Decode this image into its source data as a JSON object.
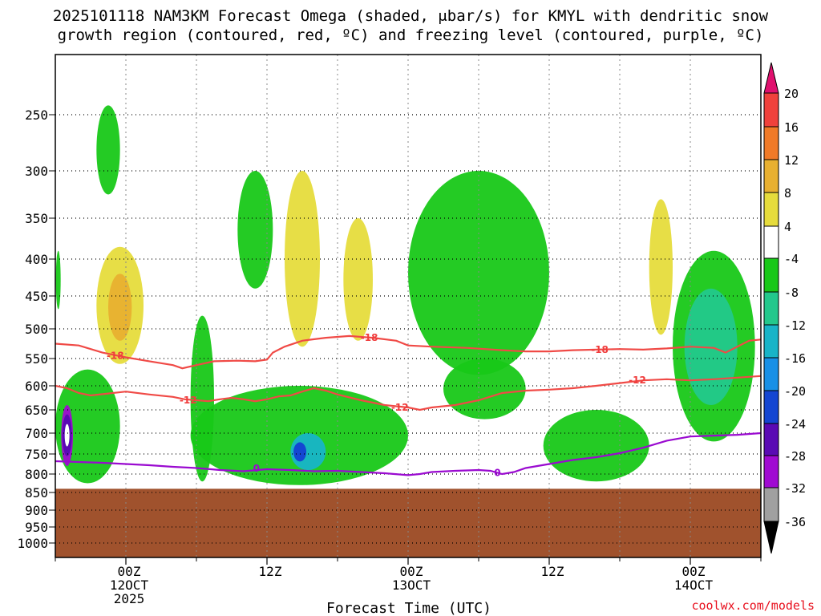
{
  "chart_data": {
    "type": "heatmap",
    "title_line1": "2025101118 NAM3KM Forecast Omega (shaded, μbar/s) for KMYL with dendritic snow",
    "title_line2": "growth region (contoured, red, ºC) and freezing level (contoured, purple, ºC)",
    "xlabel": "Forecast Time (UTC)",
    "credit": "coolwx.com/models",
    "y_ticks": [
      250,
      300,
      350,
      400,
      450,
      500,
      550,
      600,
      650,
      700,
      750,
      800,
      850,
      900,
      950,
      1000
    ],
    "x_ticks": [
      {
        "hours": 6,
        "line1": "00Z",
        "line2": "12OCT",
        "line3": "2025"
      },
      {
        "hours": 18,
        "line1": "12Z",
        "line2": "",
        "line3": ""
      },
      {
        "hours": 30,
        "line1": "00Z",
        "line2": "13OCT",
        "line3": ""
      },
      {
        "hours": 42,
        "line1": "12Z",
        "line2": "",
        "line3": ""
      },
      {
        "hours": 54,
        "line1": "00Z",
        "line2": "14OCT",
        "line3": ""
      }
    ],
    "xlim": [
      0,
      60
    ],
    "ylim_pressure_hPa": [
      1050,
      200
    ],
    "ground_level_hPa": 840,
    "colorbar": {
      "labels": [
        "20",
        "16",
        "12",
        "8",
        "4",
        "-4",
        "-8",
        "-12",
        "-16",
        "-20",
        "-24",
        "-28",
        "-32",
        "-36"
      ],
      "colors": [
        "#e0106e",
        "#f0413c",
        "#f07a28",
        "#e8b030",
        "#e6dc3c",
        "#ffffff",
        "#18c818",
        "#23c88c",
        "#18b4c8",
        "#1890e6",
        "#1446d2",
        "#5a0ab4",
        "#a00ad2",
        "#a0a0a0",
        "#000000"
      ]
    },
    "contours": [
      {
        "name": "-18",
        "color": "#f04a46",
        "points": [
          [
            0,
            525
          ],
          [
            2,
            528
          ],
          [
            4,
            540
          ],
          [
            6,
            548
          ],
          [
            8,
            555
          ],
          [
            10,
            562
          ],
          [
            10.8,
            568
          ],
          [
            12,
            562
          ],
          [
            13.5,
            555
          ],
          [
            15.5,
            554
          ],
          [
            17,
            555
          ],
          [
            18,
            552
          ],
          [
            18.5,
            540
          ],
          [
            19.5,
            530
          ],
          [
            21,
            520
          ],
          [
            23,
            515
          ],
          [
            25,
            512
          ],
          [
            27,
            515
          ],
          [
            29,
            520
          ],
          [
            30,
            528
          ],
          [
            32,
            530
          ],
          [
            35,
            532
          ],
          [
            38,
            536
          ],
          [
            40,
            538
          ],
          [
            42,
            538
          ],
          [
            44,
            536
          ],
          [
            46,
            535
          ],
          [
            48,
            534
          ],
          [
            50,
            535
          ],
          [
            52,
            533
          ],
          [
            54,
            530
          ],
          [
            56,
            532
          ],
          [
            57,
            540
          ],
          [
            58,
            530
          ],
          [
            59,
            520
          ],
          [
            60,
            518
          ]
        ]
      },
      {
        "name": "-12",
        "color": "#f04a46",
        "points": [
          [
            0,
            600
          ],
          [
            1,
            605
          ],
          [
            2,
            615
          ],
          [
            3,
            620
          ],
          [
            6,
            612
          ],
          [
            8,
            618
          ],
          [
            10,
            623
          ],
          [
            11,
            628
          ],
          [
            13,
            632
          ],
          [
            14,
            628
          ],
          [
            15,
            625
          ],
          [
            16,
            628
          ],
          [
            17,
            632
          ],
          [
            18,
            628
          ],
          [
            19,
            622
          ],
          [
            20,
            620
          ],
          [
            21,
            612
          ],
          [
            22,
            605
          ],
          [
            23,
            610
          ],
          [
            24,
            618
          ],
          [
            26,
            630
          ],
          [
            28,
            640
          ],
          [
            30,
            645
          ],
          [
            31,
            650
          ],
          [
            32,
            645
          ],
          [
            34,
            640
          ],
          [
            36,
            630
          ],
          [
            38,
            615
          ],
          [
            40,
            610
          ],
          [
            42,
            608
          ],
          [
            44,
            605
          ],
          [
            46,
            600
          ],
          [
            48,
            595
          ],
          [
            50,
            590
          ],
          [
            52,
            588
          ],
          [
            54,
            590
          ],
          [
            56,
            588
          ],
          [
            58,
            585
          ],
          [
            60,
            582
          ]
        ]
      },
      {
        "name": "0",
        "color": "#9a0ad0",
        "points": [
          [
            0,
            768
          ],
          [
            2,
            770
          ],
          [
            4,
            772
          ],
          [
            6,
            775
          ],
          [
            8,
            778
          ],
          [
            10,
            782
          ],
          [
            12,
            785
          ],
          [
            14,
            790
          ],
          [
            16,
            793
          ],
          [
            18,
            788
          ],
          [
            20,
            790
          ],
          [
            22,
            793
          ],
          [
            24,
            792
          ],
          [
            26,
            795
          ],
          [
            28,
            798
          ],
          [
            30,
            803
          ],
          [
            31,
            800
          ],
          [
            32,
            795
          ],
          [
            34,
            792
          ],
          [
            36,
            790
          ],
          [
            37,
            792
          ],
          [
            38,
            800
          ],
          [
            39,
            795
          ],
          [
            40,
            785
          ],
          [
            42,
            775
          ],
          [
            44,
            765
          ],
          [
            46,
            758
          ],
          [
            48,
            748
          ],
          [
            50,
            735
          ],
          [
            52,
            718
          ],
          [
            54,
            708
          ],
          [
            56,
            706
          ],
          [
            58,
            704
          ],
          [
            60,
            700
          ]
        ]
      }
    ],
    "contour_label_positions": [
      {
        "text": "-18",
        "x": 5.1,
        "p": 545
      },
      {
        "text": "-18",
        "x": 26.7,
        "p": 515
      },
      {
        "text": "-18",
        "x": 46.3,
        "p": 535
      },
      {
        "text": "-12",
        "x": 11.3,
        "p": 630
      },
      {
        "text": "-12",
        "x": 29.3,
        "p": 645
      },
      {
        "text": "-12",
        "x": 49.5,
        "p": 590
      },
      {
        "text": "0",
        "x": 17.1,
        "p": 786
      },
      {
        "text": "0",
        "x": 37.6,
        "p": 797
      }
    ],
    "omega_regions": [
      {
        "level": "-8",
        "x": [
          0.1,
          0.4
        ],
        "p": [
          390,
          470
        ]
      },
      {
        "level": "-8",
        "x": [
          3.5,
          5.5
        ],
        "p": [
          240,
          325
        ]
      },
      {
        "level": "4",
        "x": [
          3.5,
          7.5
        ],
        "p": [
          385,
          560
        ]
      },
      {
        "level": "8",
        "x": [
          4.5,
          6.5
        ],
        "p": [
          420,
          520
        ]
      },
      {
        "level": "-8",
        "x": [
          0,
          5.5
        ],
        "p": [
          570,
          825
        ]
      },
      {
        "level": "-32",
        "x": [
          0.5,
          1.5
        ],
        "p": [
          640,
          780
        ]
      },
      {
        "level": "-8",
        "x": [
          11.5,
          13.5
        ],
        "p": [
          480,
          820
        ]
      },
      {
        "level": "-8",
        "x": [
          11.5,
          30
        ],
        "p": [
          600,
          830
        ]
      },
      {
        "level": "-16",
        "x": [
          20,
          23
        ],
        "p": [
          700,
          790
        ]
      },
      {
        "level": "4",
        "x": [
          19.5,
          22.5
        ],
        "p": [
          300,
          530
        ]
      },
      {
        "level": "-8",
        "x": [
          15.5,
          18.5
        ],
        "p": [
          300,
          440
        ]
      },
      {
        "level": "-8",
        "x": [
          30,
          42
        ],
        "p": [
          300,
          580
        ]
      },
      {
        "level": "-8",
        "x": [
          33,
          40
        ],
        "p": [
          550,
          670
        ]
      },
      {
        "level": "4",
        "x": [
          24.5,
          27
        ],
        "p": [
          350,
          520
        ]
      },
      {
        "level": "4",
        "x": [
          50.5,
          52.5
        ],
        "p": [
          330,
          510
        ]
      },
      {
        "level": "-8",
        "x": [
          52.5,
          59.5
        ],
        "p": [
          390,
          720
        ]
      },
      {
        "level": "-8",
        "x": [
          41.5,
          50.5
        ],
        "p": [
          650,
          820
        ]
      },
      {
        "level": "-12",
        "x": [
          53.5,
          58
        ],
        "p": [
          440,
          640
        ]
      }
    ]
  }
}
